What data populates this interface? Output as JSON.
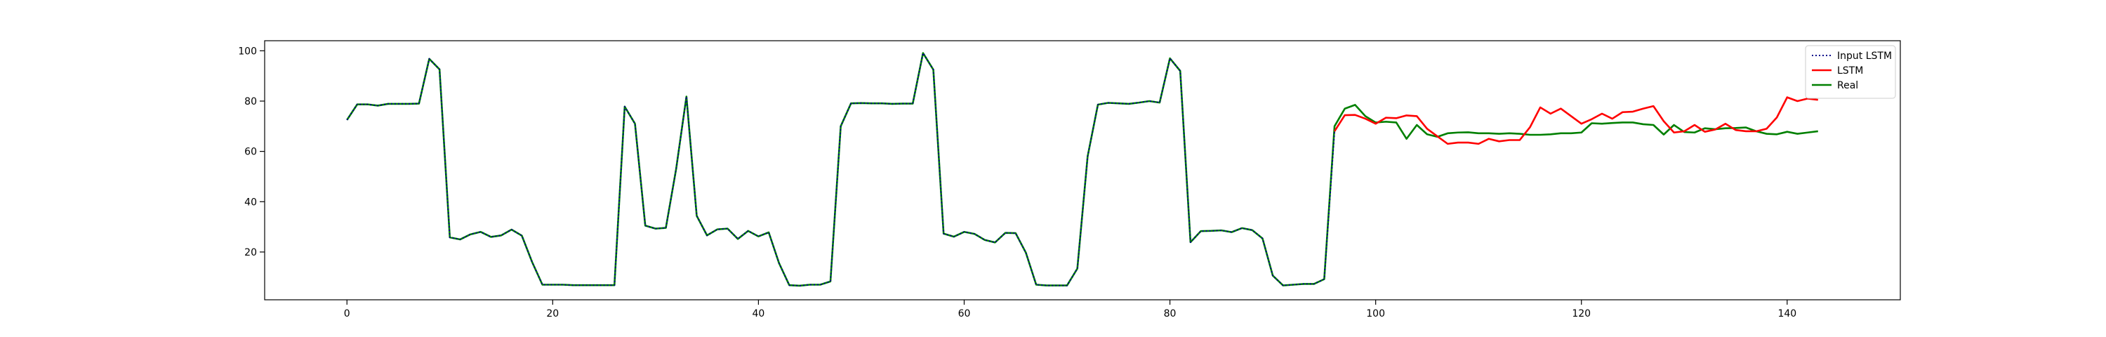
{
  "chart_data": {
    "type": "line",
    "title": "",
    "xlabel": "",
    "ylabel": "",
    "xlim": [
      -8,
      151
    ],
    "ylim": [
      1,
      104
    ],
    "grid": false,
    "legend_position": "upper right",
    "xticks": [
      0,
      20,
      40,
      60,
      80,
      100,
      120,
      140
    ],
    "yticks": [
      20,
      40,
      60,
      80,
      100
    ],
    "series": [
      {
        "name": "Input LSTM",
        "color": "#00008b",
        "dash": "dotted",
        "x": [
          0,
          1,
          2,
          3,
          4,
          5,
          6,
          7,
          8,
          9,
          10,
          11,
          12,
          13,
          14,
          15,
          16,
          17,
          18,
          19,
          20,
          21,
          22,
          23,
          24,
          25,
          26,
          27,
          28,
          29,
          30,
          31,
          32,
          33,
          34,
          35,
          36,
          37,
          38,
          39,
          40,
          41,
          42,
          43,
          44,
          45,
          46,
          47,
          48,
          49,
          50,
          51,
          52,
          53,
          54,
          55,
          56,
          57,
          58,
          59,
          60,
          61,
          62,
          63,
          64,
          65,
          66,
          67,
          68,
          69,
          70,
          71,
          72,
          73,
          74,
          75,
          76,
          77,
          78,
          79,
          80,
          81,
          82,
          83,
          84,
          85,
          86,
          87,
          88,
          89,
          90,
          91,
          92,
          93,
          94,
          95,
          96
        ],
        "values": [
          72.5,
          78.7,
          78.7,
          78.2,
          78.9,
          78.9,
          78.9,
          79.0,
          96.8,
          92.6,
          25.8,
          25.0,
          27.0,
          28.0,
          26.0,
          26.6,
          28.9,
          26.5,
          16.0,
          7.0,
          7.0,
          7.0,
          6.8,
          6.8,
          6.8,
          6.8,
          6.8,
          77.8,
          71.0,
          30.5,
          29.3,
          29.6,
          53.0,
          81.8,
          34.4,
          26.6,
          29.0,
          29.3,
          25.2,
          28.4,
          26.2,
          27.8,
          15.6,
          6.8,
          6.6,
          7.0,
          7.0,
          8.3,
          70.0,
          79.1,
          79.2,
          79.1,
          79.1,
          78.9,
          79.0,
          79.0,
          99.1,
          92.5,
          27.3,
          26.1,
          28.0,
          27.2,
          24.8,
          23.8,
          27.6,
          27.5,
          19.7,
          7.0,
          6.7,
          6.7,
          6.7,
          13.4,
          58.0,
          78.6,
          79.3,
          79.1,
          78.9,
          79.4,
          80.0,
          79.4,
          97.0,
          92.0,
          23.9,
          28.3,
          28.4,
          28.6,
          27.9,
          29.5,
          28.7,
          25.4,
          10.6,
          6.7,
          7.0,
          7.3,
          7.3,
          9.2,
          68.0
        ]
      },
      {
        "name": "LSTM",
        "color": "#ff0000",
        "dash": "solid",
        "x": [
          96,
          97,
          98,
          99,
          100,
          101,
          102,
          103,
          104,
          105,
          106,
          107,
          108,
          109,
          110,
          111,
          112,
          113,
          114,
          115,
          116,
          117,
          118,
          119,
          120,
          121,
          122,
          123,
          124,
          125,
          126,
          127,
          128,
          129,
          130,
          131,
          132,
          133,
          134,
          135,
          136,
          137,
          138,
          139,
          140,
          141,
          142,
          143
        ],
        "values": [
          68.0,
          74.4,
          74.5,
          73.0,
          71.0,
          73.4,
          73.2,
          74.3,
          74.0,
          69.0,
          66.0,
          63.0,
          63.5,
          63.5,
          63.0,
          65.0,
          64.0,
          64.5,
          64.5,
          69.6,
          77.5,
          75.0,
          77.0,
          74.0,
          71.0,
          72.8,
          75.0,
          73.0,
          75.6,
          75.8,
          77.0,
          78.0,
          72.0,
          67.5,
          68.0,
          70.5,
          67.8,
          68.7,
          71.0,
          68.5,
          68.0,
          68.0,
          69.0,
          73.5,
          81.5,
          80.0,
          81.0,
          80.5
        ]
      },
      {
        "name": "Real",
        "color": "#008000",
        "dash": "solid",
        "x": [
          0,
          1,
          2,
          3,
          4,
          5,
          6,
          7,
          8,
          9,
          10,
          11,
          12,
          13,
          14,
          15,
          16,
          17,
          18,
          19,
          20,
          21,
          22,
          23,
          24,
          25,
          26,
          27,
          28,
          29,
          30,
          31,
          32,
          33,
          34,
          35,
          36,
          37,
          38,
          39,
          40,
          41,
          42,
          43,
          44,
          45,
          46,
          47,
          48,
          49,
          50,
          51,
          52,
          53,
          54,
          55,
          56,
          57,
          58,
          59,
          60,
          61,
          62,
          63,
          64,
          65,
          66,
          67,
          68,
          69,
          70,
          71,
          72,
          73,
          74,
          75,
          76,
          77,
          78,
          79,
          80,
          81,
          82,
          83,
          84,
          85,
          86,
          87,
          88,
          89,
          90,
          91,
          92,
          93,
          94,
          95,
          96,
          97,
          98,
          99,
          100,
          101,
          102,
          103,
          104,
          105,
          106,
          107,
          108,
          109,
          110,
          111,
          112,
          113,
          114,
          115,
          116,
          117,
          118,
          119,
          120,
          121,
          122,
          123,
          124,
          125,
          126,
          127,
          128,
          129,
          130,
          131,
          132,
          133,
          134,
          135,
          136,
          137,
          138,
          139,
          140,
          141,
          142,
          143
        ],
        "values": [
          72.5,
          78.7,
          78.7,
          78.2,
          78.9,
          78.9,
          78.9,
          79.0,
          96.8,
          92.6,
          25.8,
          25.0,
          27.0,
          28.0,
          26.0,
          26.6,
          28.9,
          26.5,
          16.0,
          7.0,
          7.0,
          7.0,
          6.8,
          6.8,
          6.8,
          6.8,
          6.8,
          77.8,
          71.0,
          30.5,
          29.3,
          29.6,
          53.0,
          81.8,
          34.4,
          26.6,
          29.0,
          29.3,
          25.2,
          28.4,
          26.2,
          27.8,
          15.6,
          6.8,
          6.6,
          7.0,
          7.0,
          8.3,
          70.0,
          79.1,
          79.2,
          79.1,
          79.1,
          78.9,
          79.0,
          79.0,
          99.1,
          92.5,
          27.3,
          26.1,
          28.0,
          27.2,
          24.8,
          23.8,
          27.6,
          27.5,
          19.7,
          7.0,
          6.7,
          6.7,
          6.7,
          13.4,
          58.0,
          78.6,
          79.3,
          79.1,
          78.9,
          79.4,
          80.0,
          79.4,
          97.0,
          92.0,
          23.9,
          28.3,
          28.4,
          28.6,
          27.9,
          29.5,
          28.7,
          25.4,
          10.6,
          6.7,
          7.0,
          7.3,
          7.3,
          9.2,
          70.0,
          77.0,
          78.5,
          74.0,
          71.5,
          71.8,
          71.5,
          65.0,
          70.5,
          66.8,
          65.8,
          67.2,
          67.5,
          67.6,
          67.2,
          67.2,
          67.0,
          67.2,
          67.0,
          66.6,
          66.6,
          66.8,
          67.2,
          67.2,
          67.5,
          71.2,
          71.0,
          71.3,
          71.5,
          71.5,
          70.8,
          70.5,
          66.7,
          70.5,
          67.7,
          67.5,
          69.2,
          68.8,
          69.2,
          69.3,
          69.5,
          68.0,
          67.0,
          66.8,
          67.8,
          67.0,
          67.5,
          68.0
        ]
      }
    ]
  }
}
